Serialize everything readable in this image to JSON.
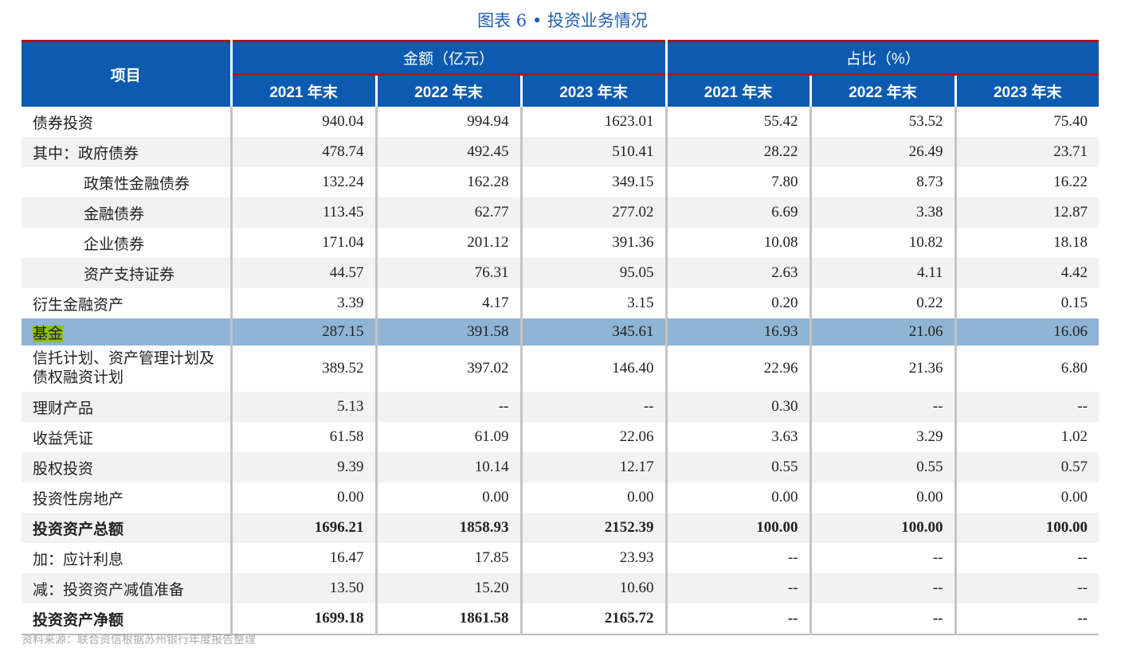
{
  "title": "图表 6 • 投资业务情况",
  "header": {
    "item": "项目",
    "amount_group": "金额（亿元）",
    "ratio_group": "占比（%）",
    "years": [
      "2021 年末",
      "2022 年末",
      "2023 年末",
      "2021 年末",
      "2022 年末",
      "2023 年末"
    ]
  },
  "rows": [
    {
      "label": "债券投资",
      "values": [
        "940.04",
        "994.94",
        "1623.01",
        "55.42",
        "53.52",
        "75.40"
      ]
    },
    {
      "label": "其中：政府债券",
      "values": [
        "478.74",
        "492.45",
        "510.41",
        "28.22",
        "26.49",
        "23.71"
      ]
    },
    {
      "label": "政策性金融债券",
      "values": [
        "132.24",
        "162.28",
        "349.15",
        "7.80",
        "8.73",
        "16.22"
      ]
    },
    {
      "label": "金融债券",
      "values": [
        "113.45",
        "62.77",
        "277.02",
        "6.69",
        "3.38",
        "12.87"
      ]
    },
    {
      "label": "企业债券",
      "values": [
        "171.04",
        "201.12",
        "391.36",
        "10.08",
        "10.82",
        "18.18"
      ]
    },
    {
      "label": "资产支持证券",
      "values": [
        "44.57",
        "76.31",
        "95.05",
        "2.63",
        "4.11",
        "4.42"
      ]
    },
    {
      "label": "衍生金融资产",
      "values": [
        "3.39",
        "4.17",
        "3.15",
        "0.20",
        "0.22",
        "0.15"
      ]
    },
    {
      "label": "基金",
      "values": [
        "287.15",
        "391.58",
        "345.61",
        "16.93",
        "21.06",
        "16.06"
      ]
    },
    {
      "label": "信托计划、资产管理计划及债权融资计划",
      "values": [
        "389.52",
        "397.02",
        "146.40",
        "22.96",
        "21.36",
        "6.80"
      ]
    },
    {
      "label": "理财产品",
      "values": [
        "5.13",
        "--",
        "--",
        "0.30",
        "--",
        "--"
      ]
    },
    {
      "label": "收益凭证",
      "values": [
        "61.58",
        "61.09",
        "22.06",
        "3.63",
        "3.29",
        "1.02"
      ]
    },
    {
      "label": "股权投资",
      "values": [
        "9.39",
        "10.14",
        "12.17",
        "0.55",
        "0.55",
        "0.57"
      ]
    },
    {
      "label": "投资性房地产",
      "values": [
        "0.00",
        "0.00",
        "0.00",
        "0.00",
        "0.00",
        "0.00"
      ]
    },
    {
      "label": "投资资产总额",
      "values": [
        "1696.21",
        "1858.93",
        "2152.39",
        "100.00",
        "100.00",
        "100.00"
      ]
    },
    {
      "label": "加：应计利息",
      "values": [
        "16.47",
        "17.85",
        "23.93",
        "--",
        "--",
        "--"
      ]
    },
    {
      "label": "减：投资资产减值准备",
      "values": [
        "13.50",
        "15.20",
        "10.60",
        "--",
        "--",
        "--"
      ]
    },
    {
      "label": "投资资产净额",
      "values": [
        "1699.18",
        "1861.58",
        "2165.72",
        "--",
        "--",
        "--"
      ]
    }
  ],
  "source": "资料来源：联合资信根据苏州银行年度报告整理",
  "colors": {
    "header_bg": "#0d5bb0",
    "accent_line": "#b0121b",
    "highlight_row": "#8fb4d4",
    "highlight_text": "#8fbe1c",
    "title": "#1f5fb0"
  }
}
